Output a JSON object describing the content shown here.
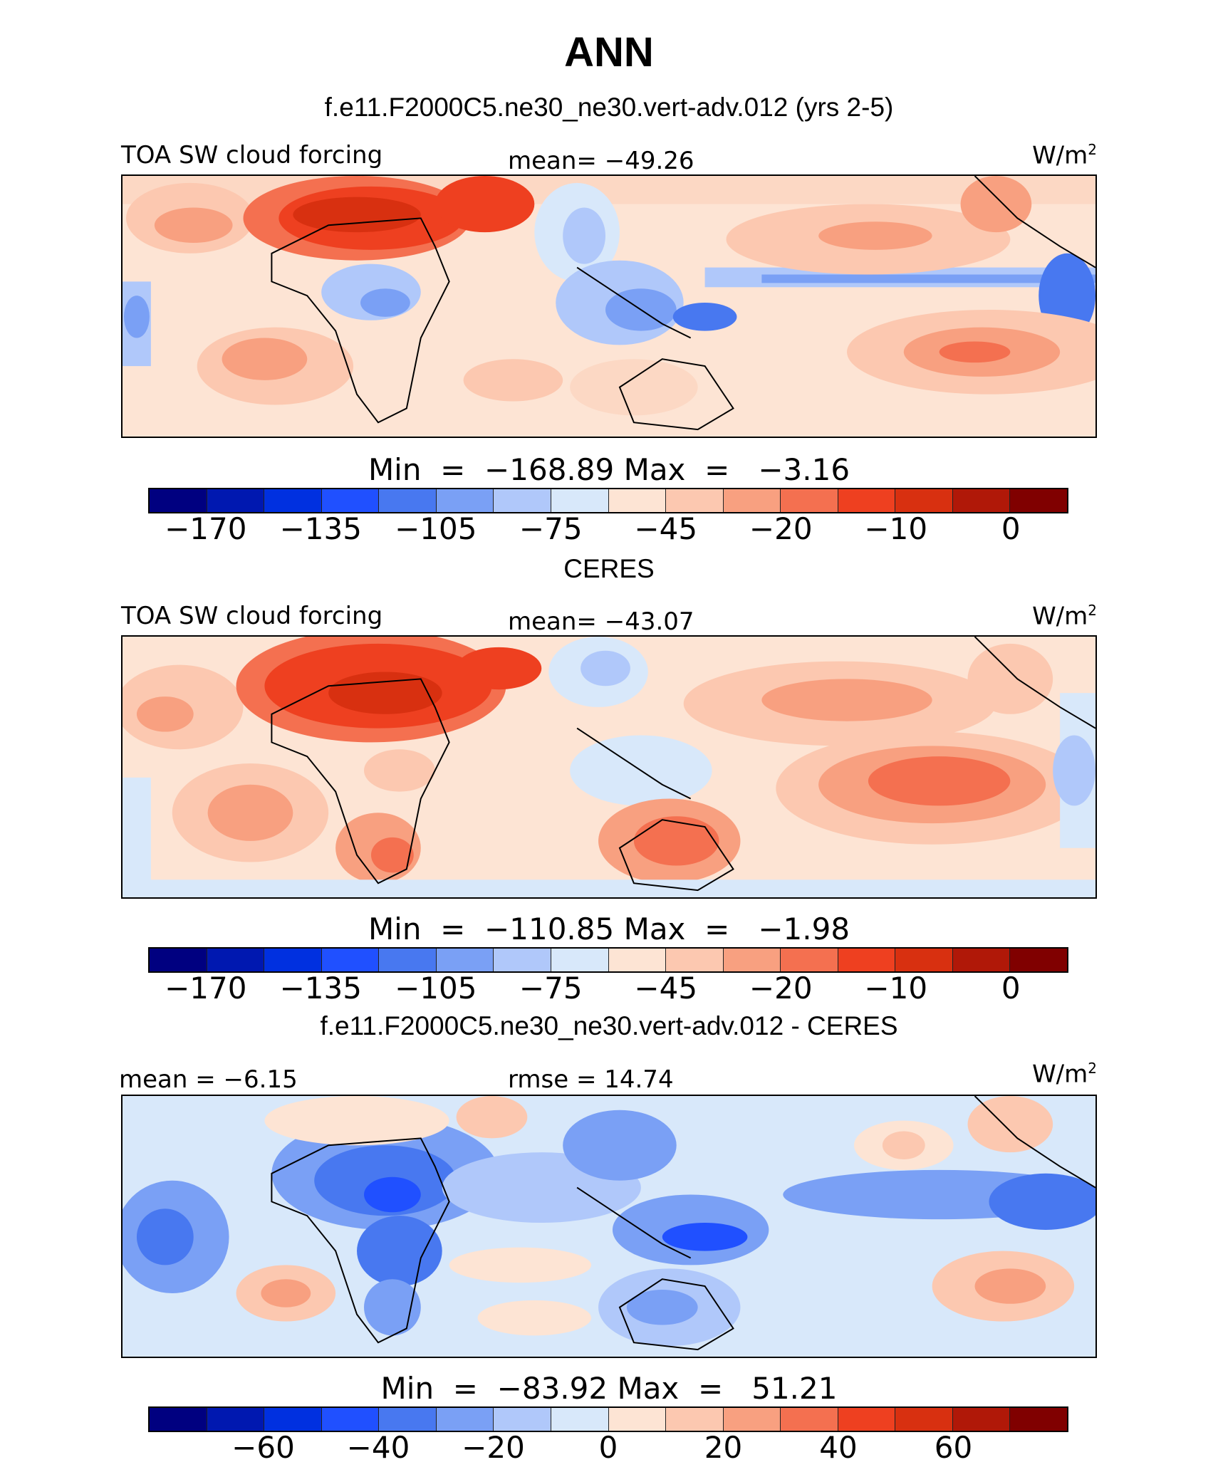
{
  "page": {
    "title": "ANN"
  },
  "panels": [
    {
      "heading": "f.e11.F2000C5.ne30_ne30.vert-adv.012 (yrs 2-5)",
      "left_label": "TOA SW cloud forcing",
      "center_label": "mean= −49.26",
      "units_base": "W/m",
      "units_exp": "2",
      "min_label": "Min  =  −168.89",
      "max_label": "Max  =   −3.16",
      "colorbar": [
        "#000080",
        "#0018b0",
        "#0030e0",
        "#2050ff",
        "#4878f0",
        "#7aa0f5",
        "#b0c8fa",
        "#d8e8fa",
        "#fde4d4",
        "#fcc8b0",
        "#f8a080",
        "#f47050",
        "#ee4020",
        "#d83010",
        "#b01808",
        "#800000"
      ],
      "ticks": [
        "−170",
        "−135",
        "−105",
        "−75",
        "−45",
        "−20",
        "−10",
        "0"
      ]
    },
    {
      "heading": "CERES",
      "left_label": "TOA SW cloud forcing",
      "center_label": "mean= −43.07",
      "units_base": "W/m",
      "units_exp": "2",
      "min_label": "Min  =  −110.85",
      "max_label": "Max  =   −1.98",
      "colorbar": [
        "#000080",
        "#0018b0",
        "#0030e0",
        "#2050ff",
        "#4878f0",
        "#7aa0f5",
        "#b0c8fa",
        "#d8e8fa",
        "#fde4d4",
        "#fcc8b0",
        "#f8a080",
        "#f47050",
        "#ee4020",
        "#d83010",
        "#b01808",
        "#800000"
      ],
      "ticks": [
        "−170",
        "−135",
        "−105",
        "−75",
        "−45",
        "−20",
        "−10",
        "0"
      ]
    },
    {
      "heading": "f.e11.F2000C5.ne30_ne30.vert-adv.012 - CERES",
      "left_label": "mean =   −6.15",
      "center_label": "rmse =   14.74",
      "units_base": "W/m",
      "units_exp": "2",
      "min_label": "Min  =  −83.92",
      "max_label": "Max  =   51.21",
      "colorbar": [
        "#000080",
        "#0018b0",
        "#0030e0",
        "#2050ff",
        "#4878f0",
        "#7aa0f5",
        "#b0c8fa",
        "#d8e8fa",
        "#fde4d4",
        "#fcc8b0",
        "#f8a080",
        "#f47050",
        "#ee4020",
        "#d83010",
        "#b01808",
        "#800000"
      ],
      "ticks": [
        "−60",
        "−40",
        "−20",
        "0",
        "20",
        "40",
        "60"
      ]
    }
  ],
  "chart_data": [
    {
      "type": "heatmap",
      "title": "f.e11.F2000C5.ne30_ne30.vert-adv.012 (yrs 2-5)",
      "variable": "TOA SW cloud forcing",
      "units": "W/m2",
      "mean": -49.26,
      "min": -168.89,
      "max": -3.16,
      "colorbar_levels": [
        -170,
        -135,
        -105,
        -75,
        -45,
        -20,
        -10,
        0
      ],
      "colormap": "blue-white-red diverging"
    },
    {
      "type": "heatmap",
      "title": "CERES",
      "variable": "TOA SW cloud forcing",
      "units": "W/m2",
      "mean": -43.07,
      "min": -110.85,
      "max": -1.98,
      "colorbar_levels": [
        -170,
        -135,
        -105,
        -75,
        -45,
        -20,
        -10,
        0
      ],
      "colormap": "blue-white-red diverging"
    },
    {
      "type": "heatmap",
      "title": "f.e11.F2000C5.ne30_ne30.vert-adv.012 - CERES",
      "units": "W/m2",
      "mean": -6.15,
      "rmse": 14.74,
      "min": -83.92,
      "max": 51.21,
      "colorbar_levels": [
        -60,
        -40,
        -20,
        0,
        20,
        40,
        60
      ],
      "colormap": "blue-white-red diverging"
    }
  ]
}
